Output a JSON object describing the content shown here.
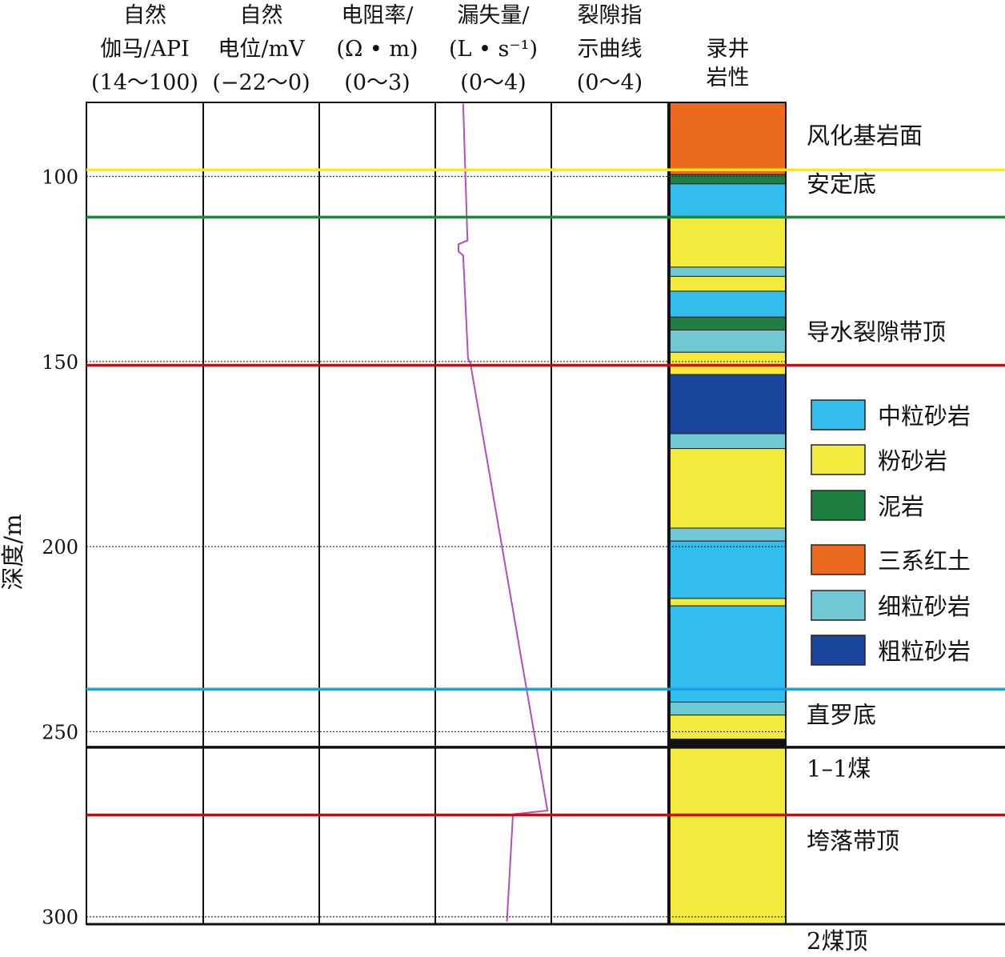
{
  "chart_data": {
    "type": "well-log",
    "ylabel": "深度/m",
    "depth_range": [
      80,
      302
    ],
    "depth_ticks": [
      "100",
      "150",
      "200",
      "250",
      "300"
    ],
    "tracks": [
      {
        "name": "gr",
        "header": [
          "自然",
          "伽马/API",
          "(14～100)"
        ],
        "color": "#3c2385",
        "range": [
          14,
          100
        ]
      },
      {
        "name": "sp",
        "header": [
          "自然",
          "电位/mV",
          "(−22～0)"
        ],
        "color": "#a3302c",
        "range": [
          -22,
          0
        ]
      },
      {
        "name": "res",
        "header": [
          "电阻率/",
          "(Ω • m)",
          "(0～3)"
        ],
        "color": "#e8201d",
        "range": [
          0,
          3
        ]
      },
      {
        "name": "loss",
        "header": [
          "漏失量/",
          "(L • s⁻¹)",
          "(0～4)"
        ],
        "color": "#b050b8",
        "range": [
          0,
          4
        ]
      },
      {
        "name": "frac",
        "header": [
          "裂隙指",
          "示曲线",
          "(0～4)"
        ],
        "color": "#1a4fa8",
        "range": [
          0,
          4
        ]
      }
    ],
    "lithology_header": [
      "录井",
      "岩性"
    ],
    "lithology": [
      {
        "top": 80,
        "bottom": 99.5,
        "type": "red-soil"
      },
      {
        "top": 99.5,
        "bottom": 102,
        "type": "mudstone"
      },
      {
        "top": 102,
        "bottom": 111,
        "type": "medium-sandstone"
      },
      {
        "top": 111,
        "bottom": 124.5,
        "type": "siltstone"
      },
      {
        "top": 124.5,
        "bottom": 127,
        "type": "fine-sandstone"
      },
      {
        "top": 127,
        "bottom": 131,
        "type": "siltstone"
      },
      {
        "top": 131,
        "bottom": 138,
        "type": "medium-sandstone"
      },
      {
        "top": 138,
        "bottom": 141.5,
        "type": "mudstone"
      },
      {
        "top": 141.5,
        "bottom": 147.5,
        "type": "fine-sandstone"
      },
      {
        "top": 147.5,
        "bottom": 151,
        "type": "siltstone"
      },
      {
        "top": 151,
        "bottom": 153.5,
        "type": "siltstone"
      },
      {
        "top": 153.5,
        "bottom": 169.5,
        "type": "coarse-sandstone"
      },
      {
        "top": 169.5,
        "bottom": 173.5,
        "type": "fine-sandstone"
      },
      {
        "top": 173.5,
        "bottom": 195,
        "type": "siltstone"
      },
      {
        "top": 195,
        "bottom": 198.5,
        "type": "fine-sandstone"
      },
      {
        "top": 198.5,
        "bottom": 214,
        "type": "medium-sandstone"
      },
      {
        "top": 214,
        "bottom": 216,
        "type": "siltstone"
      },
      {
        "top": 216,
        "bottom": 242,
        "type": "medium-sandstone"
      },
      {
        "top": 242,
        "bottom": 245.5,
        "type": "fine-sandstone"
      },
      {
        "top": 245.5,
        "bottom": 252,
        "type": "siltstone"
      },
      {
        "top": 252,
        "bottom": 254,
        "type": "coal"
      },
      {
        "top": 254,
        "bottom": 302,
        "type": "siltstone"
      }
    ],
    "horizons": [
      {
        "depth": 98.2,
        "color": "#ffec00",
        "label": "风化基岩面",
        "label_depth": 89
      },
      {
        "depth": 111,
        "color": "#1a8a3a",
        "label": "安定底",
        "label_depth": 102
      },
      {
        "depth": 151,
        "color": "#e60000",
        "label": "导水裂隙带顶",
        "label_depth": 142
      },
      {
        "depth": 238.5,
        "color": "#18a3e0",
        "label": "直罗底",
        "label_depth": 245.5
      },
      {
        "depth": 254.2,
        "color": "#111111",
        "label": "1–1煤",
        "label_depth": 260
      },
      {
        "depth": 272.5,
        "color": "#e60000",
        "label": "垮落带顶",
        "label_depth": 279.5
      },
      {
        "depth": 302,
        "color": "#111111",
        "label": "2煤顶",
        "label_depth": 308
      }
    ],
    "legend": [
      {
        "key": "medium-sandstone",
        "label": "中粒砂岩",
        "color": "#33bdec"
      },
      {
        "key": "siltstone",
        "label": "粉砂岩",
        "color": "#f2ea3c"
      },
      {
        "key": "mudstone",
        "label": "泥岩",
        "color": "#1f7e42"
      },
      {
        "key": "red-soil",
        "label": "三系红土",
        "color": "#ec6a1f"
      },
      {
        "key": "fine-sandstone",
        "label": "细粒砂岩",
        "color": "#72c9d6"
      },
      {
        "key": "coarse-sandstone",
        "label": "粗粒砂岩",
        "color": "#1b469e"
      }
    ],
    "colors": {
      "coal": "#111111"
    }
  }
}
